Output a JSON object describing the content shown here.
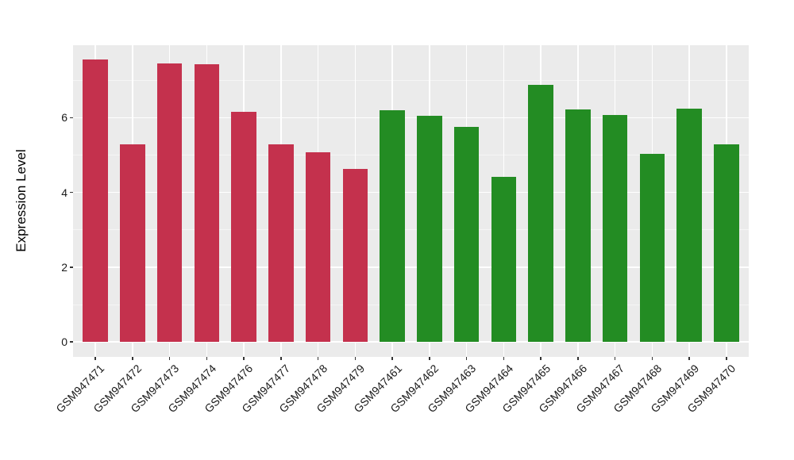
{
  "chart_data": {
    "type": "bar",
    "title": "",
    "xlabel": "",
    "ylabel": "Expression Level",
    "categories": [
      "GSM947471",
      "GSM947472",
      "GSM947473",
      "GSM947474",
      "GSM947476",
      "GSM947477",
      "GSM947478",
      "GSM947479",
      "GSM947461",
      "GSM947462",
      "GSM947463",
      "GSM947464",
      "GSM947465",
      "GSM947466",
      "GSM947467",
      "GSM947468",
      "GSM947469",
      "GSM947470"
    ],
    "values": [
      7.55,
      5.29,
      7.46,
      7.44,
      6.15,
      5.29,
      5.07,
      4.63,
      6.19,
      6.05,
      5.75,
      4.41,
      6.88,
      6.22,
      6.08,
      5.03,
      6.24,
      5.29
    ],
    "bar_colors": [
      "#C4314D",
      "#C4314D",
      "#C4314D",
      "#C4314D",
      "#C4314D",
      "#C4314D",
      "#C4314D",
      "#C4314D",
      "#238C23",
      "#238C23",
      "#238C23",
      "#238C23",
      "#238C23",
      "#238C23",
      "#238C23",
      "#238C23",
      "#238C23",
      "#238C23"
    ],
    "group_colors": {
      "red_group": "#C4314D",
      "green_group": "#238C23"
    },
    "yticks": [
      0,
      2,
      4,
      6
    ],
    "yticks_minor": [
      1,
      3,
      5,
      7
    ],
    "ylim": [
      -0.4,
      7.94
    ],
    "legend": "none",
    "grid": true,
    "panel_bg": "#EBEBEB",
    "grid_major_color": "#FFFFFF",
    "grid_minor_color": "#F5F5F5",
    "x_label_angle_deg": 45
  }
}
